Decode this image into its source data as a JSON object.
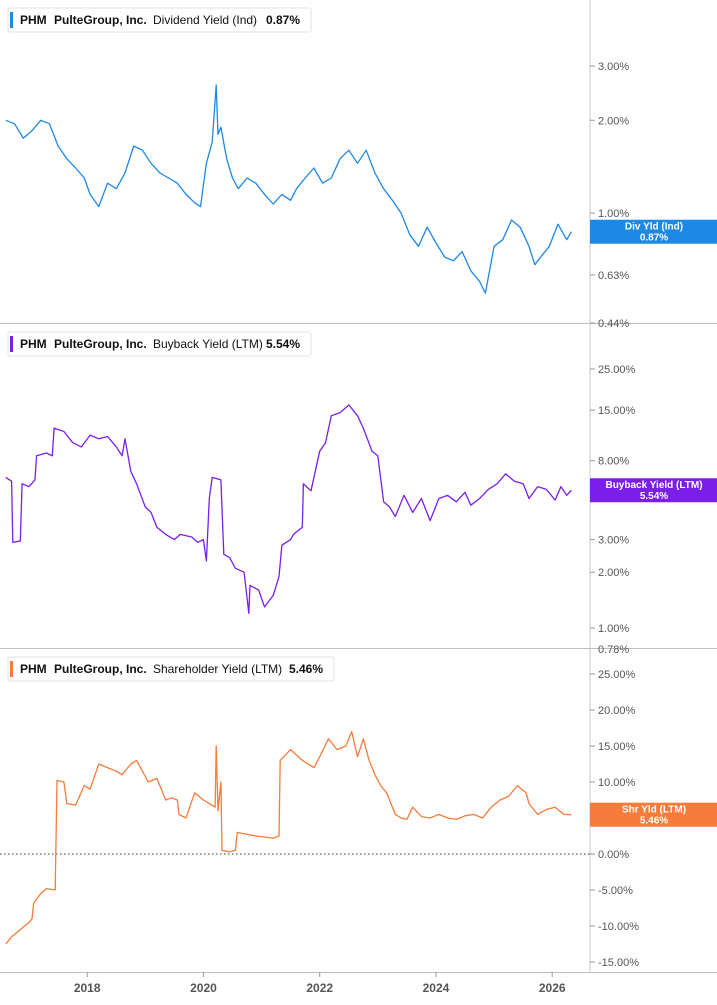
{
  "chart_data": [
    {
      "type": "line",
      "ticker": "PHM",
      "company": "PulteGroup, Inc.",
      "metric": "Dividend Yield (Ind)",
      "current": "0.87%",
      "badge_line1": "Div Yld (Ind)",
      "badge_line2": "0.87%",
      "color": "#1e88e5",
      "y_scale": "log",
      "ylim": [
        0.42,
        5.0
      ],
      "y_ticks": [
        {
          "value": 3.0,
          "label": "3.00%"
        },
        {
          "value": 2.0,
          "label": "2.00%"
        },
        {
          "value": 1.0,
          "label": "1.00%"
        },
        {
          "value": 0.63,
          "label": "0.63%"
        },
        {
          "value": 0.44,
          "label": "0.44%"
        }
      ],
      "series": [
        {
          "x": [
            2016.6,
            2016.75,
            2016.9,
            2017.05,
            2017.2,
            2017.35,
            2017.5,
            2017.65,
            2017.8,
            2017.95,
            2018.05,
            2018.2,
            2018.35,
            2018.5,
            2018.65,
            2018.8,
            2018.95,
            2019.1,
            2019.25,
            2019.4,
            2019.55,
            2019.7,
            2019.85,
            2019.95,
            2020.05,
            2020.15,
            2020.22,
            2020.25,
            2020.3,
            2020.4,
            2020.5,
            2020.6,
            2020.75,
            2020.9,
            2021.05,
            2021.2,
            2021.35,
            2021.5,
            2021.6,
            2021.75,
            2021.9,
            2022.05,
            2022.2,
            2022.35,
            2022.5,
            2022.65,
            2022.8,
            2022.95,
            2023.1,
            2023.25,
            2023.4,
            2023.55,
            2023.7,
            2023.85,
            2024.0,
            2024.15,
            2024.3,
            2024.45,
            2024.6,
            2024.75,
            2024.85,
            2025.0,
            2025.15,
            2025.3,
            2025.45,
            2025.6,
            2025.7,
            2025.8,
            2025.95,
            2026.1,
            2026.25,
            2026.33
          ],
          "y": [
            2.0,
            1.95,
            1.75,
            1.85,
            2.0,
            1.95,
            1.65,
            1.5,
            1.4,
            1.3,
            1.15,
            1.05,
            1.25,
            1.2,
            1.35,
            1.65,
            1.6,
            1.45,
            1.35,
            1.3,
            1.25,
            1.15,
            1.08,
            1.05,
            1.45,
            1.7,
            2.6,
            1.8,
            1.9,
            1.5,
            1.3,
            1.2,
            1.3,
            1.25,
            1.15,
            1.07,
            1.15,
            1.1,
            1.2,
            1.3,
            1.4,
            1.25,
            1.3,
            1.5,
            1.6,
            1.45,
            1.6,
            1.35,
            1.2,
            1.1,
            1.0,
            0.85,
            0.78,
            0.9,
            0.8,
            0.72,
            0.7,
            0.75,
            0.65,
            0.6,
            0.55,
            0.78,
            0.82,
            0.95,
            0.9,
            0.78,
            0.68,
            0.72,
            0.78,
            0.92,
            0.82,
            0.87
          ]
        }
      ]
    },
    {
      "type": "line",
      "ticker": "PHM",
      "company": "PulteGroup, Inc.",
      "metric": "Buyback Yield (LTM)",
      "current": "5.54%",
      "badge_line1": "Buyback Yield (LTM)",
      "badge_line2": "5.54%",
      "color": "#7b1fe8",
      "y_scale": "log",
      "ylim": [
        0.95,
        30.0
      ],
      "y_ticks": [
        {
          "value": 25.0,
          "label": "25.00%"
        },
        {
          "value": 15.0,
          "label": "15.00%"
        },
        {
          "value": 8.0,
          "label": "8.00%"
        },
        {
          "value": 3.0,
          "label": "3.00%"
        },
        {
          "value": 2.0,
          "label": "2.00%"
        },
        {
          "value": 1.0,
          "label": "1.00%"
        }
      ],
      "series": [
        {
          "x": [
            2016.6,
            2016.7,
            2016.72,
            2016.85,
            2016.88,
            2017.0,
            2017.1,
            2017.13,
            2017.3,
            2017.4,
            2017.43,
            2017.6,
            2017.75,
            2017.9,
            2018.05,
            2018.2,
            2018.35,
            2018.5,
            2018.6,
            2018.65,
            2018.75,
            2018.85,
            2019.0,
            2019.1,
            2019.2,
            2019.35,
            2019.5,
            2019.6,
            2019.8,
            2019.9,
            2020.0,
            2020.05,
            2020.1,
            2020.15,
            2020.3,
            2020.35,
            2020.45,
            2020.55,
            2020.7,
            2020.78,
            2020.8,
            2020.95,
            2021.05,
            2021.2,
            2021.3,
            2021.35,
            2021.5,
            2021.55,
            2021.7,
            2021.72,
            2021.85,
            2022.0,
            2022.1,
            2022.2,
            2022.35,
            2022.5,
            2022.65,
            2022.75,
            2022.9,
            2023.0,
            2023.1,
            2023.2,
            2023.3,
            2023.45,
            2023.6,
            2023.75,
            2023.9,
            2024.05,
            2024.2,
            2024.35,
            2024.5,
            2024.6,
            2024.75,
            2024.9,
            2025.05,
            2025.2,
            2025.35,
            2025.5,
            2025.6,
            2025.75,
            2025.9,
            2026.05,
            2026.15,
            2026.25,
            2026.33
          ],
          "y": [
            6.5,
            6.2,
            2.9,
            2.95,
            6.0,
            5.8,
            6.3,
            8.5,
            8.8,
            8.5,
            12.0,
            11.5,
            10.0,
            9.5,
            11.0,
            10.5,
            10.8,
            9.5,
            8.5,
            10.5,
            7.0,
            6.0,
            4.5,
            4.2,
            3.5,
            3.2,
            3.0,
            3.2,
            3.1,
            2.9,
            3.0,
            2.3,
            5.0,
            6.5,
            6.3,
            2.5,
            2.4,
            2.1,
            2.0,
            1.2,
            1.7,
            1.6,
            1.3,
            1.5,
            1.9,
            2.8,
            3.0,
            3.2,
            3.5,
            6.0,
            5.5,
            9.0,
            10.0,
            14.0,
            14.5,
            16.0,
            14.0,
            12.0,
            9.0,
            8.5,
            4.8,
            4.5,
            4.0,
            5.2,
            4.2,
            5.0,
            3.8,
            5.0,
            5.2,
            4.8,
            5.4,
            4.6,
            5.0,
            5.6,
            6.0,
            6.8,
            6.2,
            6.0,
            5.0,
            5.8,
            5.6,
            4.9,
            5.8,
            5.2,
            5.54
          ]
        }
      ]
    },
    {
      "type": "line",
      "ticker": "PHM",
      "company": "PulteGroup, Inc.",
      "metric": "Shareholder Yield (LTM)",
      "current": "5.46%",
      "badge_line1": "Shr Yld (LTM)",
      "badge_line2": "5.46%",
      "color": "#f57c3a",
      "y_scale": "linear",
      "ylim": [
        -16.5,
        28.5
      ],
      "y_ticks": [
        {
          "value": 25.0,
          "label": "25.00%"
        },
        {
          "value": 20.0,
          "label": "20.00%"
        },
        {
          "value": 15.0,
          "label": "15.00%"
        },
        {
          "value": 10.0,
          "label": "10.00%"
        },
        {
          "value": 5.0,
          "label": "5.00%"
        },
        {
          "value": 0.0,
          "label": "0.00%"
        },
        {
          "value": -5.0,
          "label": "-5.00%"
        },
        {
          "value": -10.0,
          "label": "-10.00%"
        },
        {
          "value": -15.0,
          "label": "-15.00%"
        }
      ],
      "zero_line": true,
      "series": [
        {
          "x": [
            2016.6,
            2016.7,
            2016.85,
            2017.0,
            2017.05,
            2017.08,
            2017.2,
            2017.3,
            2017.45,
            2017.48,
            2017.6,
            2017.65,
            2017.8,
            2017.95,
            2018.05,
            2018.2,
            2018.35,
            2018.5,
            2018.6,
            2018.75,
            2018.85,
            2018.95,
            2019.05,
            2019.2,
            2019.35,
            2019.45,
            2019.55,
            2019.58,
            2019.7,
            2019.85,
            2020.0,
            2020.1,
            2020.2,
            2020.22,
            2020.25,
            2020.3,
            2020.32,
            2020.45,
            2020.55,
            2020.58,
            2020.7,
            2020.9,
            2021.1,
            2021.2,
            2021.3,
            2021.32,
            2021.5,
            2021.7,
            2021.9,
            2022.0,
            2022.15,
            2022.3,
            2022.45,
            2022.55,
            2022.65,
            2022.75,
            2022.85,
            2022.95,
            2023.05,
            2023.15,
            2023.3,
            2023.4,
            2023.5,
            2023.6,
            2023.75,
            2023.9,
            2024.05,
            2024.2,
            2024.35,
            2024.5,
            2024.65,
            2024.8,
            2024.95,
            2025.1,
            2025.25,
            2025.4,
            2025.55,
            2025.6,
            2025.75,
            2025.9,
            2026.05,
            2026.2,
            2026.33
          ],
          "y": [
            -12.5,
            -11.5,
            -10.5,
            -9.5,
            -9.0,
            -6.8,
            -5.5,
            -4.8,
            -5.0,
            10.2,
            10.0,
            7.0,
            6.8,
            9.5,
            9.0,
            12.5,
            12.0,
            11.5,
            11.0,
            12.5,
            13.0,
            11.5,
            10.0,
            10.5,
            7.5,
            7.8,
            7.5,
            5.5,
            5.0,
            8.5,
            7.5,
            7.0,
            6.5,
            15.0,
            6.0,
            10.0,
            0.5,
            0.3,
            0.5,
            3.0,
            2.8,
            2.5,
            2.3,
            2.2,
            2.5,
            13.0,
            14.5,
            13.0,
            12.0,
            13.5,
            16.0,
            14.5,
            15.0,
            17.0,
            13.5,
            16.0,
            13.0,
            11.0,
            9.5,
            8.5,
            5.5,
            5.0,
            4.8,
            6.5,
            5.2,
            5.0,
            5.5,
            5.0,
            4.8,
            5.3,
            5.5,
            5.0,
            6.5,
            7.5,
            8.0,
            9.5,
            8.5,
            7.0,
            5.5,
            6.2,
            6.5,
            5.5,
            5.46
          ]
        }
      ]
    }
  ],
  "x_axis": {
    "range": [
      2016.5,
      2026.65
    ],
    "ticks": [
      {
        "value": 2018,
        "label": "2018"
      },
      {
        "value": 2020,
        "label": "2020"
      },
      {
        "value": 2022,
        "label": "2022"
      },
      {
        "value": 2024,
        "label": "2024"
      },
      {
        "value": 2026,
        "label": "2026"
      }
    ]
  },
  "ghost_labels": [
    "0.78%"
  ]
}
